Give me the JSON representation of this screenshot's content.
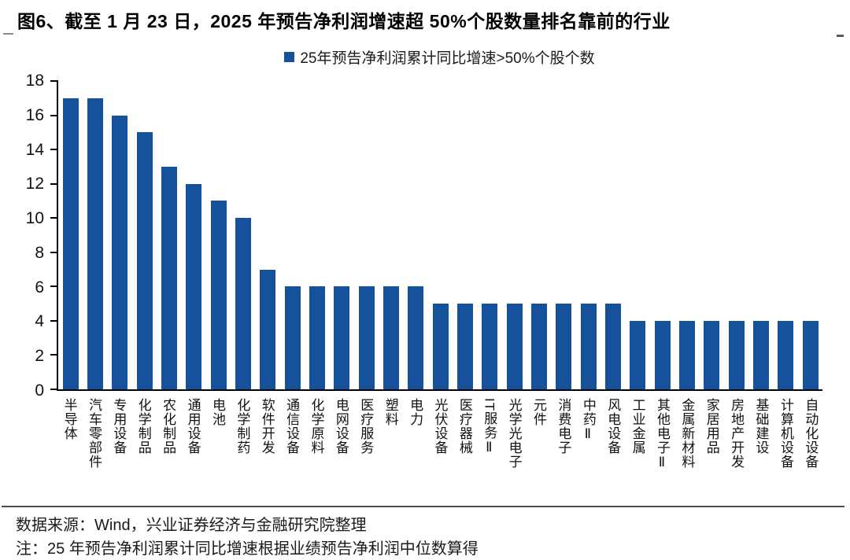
{
  "title": "图6、截至 1 月 23 日，2025 年预告净利润增速超 50%个股数量排名靠前的行业",
  "legend": {
    "label": "25年预告净利润累计同比增速>50%个股个数",
    "marker_color": "#15529B"
  },
  "colors": {
    "bar": "#15529B",
    "axis": "#000000",
    "divider": "#4d4d4d"
  },
  "chart_data": {
    "type": "bar",
    "title": "图6、截至 1 月 23 日，2025 年预告净利润增速超 50%个股数量排名靠前的行业",
    "legend_entries": [
      "25年预告净利润累计同比增速>50%个股个数"
    ],
    "legend_position": "top-center",
    "grid": false,
    "xlabel": "",
    "ylabel": "",
    "ylim": [
      0,
      18
    ],
    "yticks": [
      0,
      2,
      4,
      6,
      8,
      10,
      12,
      14,
      16,
      18
    ],
    "categories": [
      "半导体",
      "汽车零部件",
      "专用设备",
      "化学制品",
      "农化制品",
      "通用设备",
      "电池",
      "化学制药",
      "软件开发",
      "通信设备",
      "化学原料",
      "电网设备",
      "医疗服务",
      "塑料",
      "电力",
      "光伏设备",
      "医疗器械",
      "IT服务Ⅱ",
      "光学光电子",
      "元件",
      "消费电子",
      "中药Ⅱ",
      "风电设备",
      "工业金属",
      "其他电子Ⅱ",
      "金属新材料",
      "家居用品",
      "房地产开发",
      "基础建设",
      "计算机设备",
      "自动化设备"
    ],
    "values": [
      17,
      17,
      16,
      15,
      13,
      12,
      11,
      10,
      7,
      6,
      6,
      6,
      6,
      6,
      6,
      5,
      5,
      5,
      5,
      5,
      5,
      5,
      5,
      4,
      4,
      4,
      4,
      4,
      4,
      4,
      4
    ]
  },
  "footer": {
    "source": "数据来源：Wind，兴业证券经济与金融研究院整理",
    "note": "注：25 年预告净利润累计同比增速根据业绩预告净利润中位数算得"
  }
}
